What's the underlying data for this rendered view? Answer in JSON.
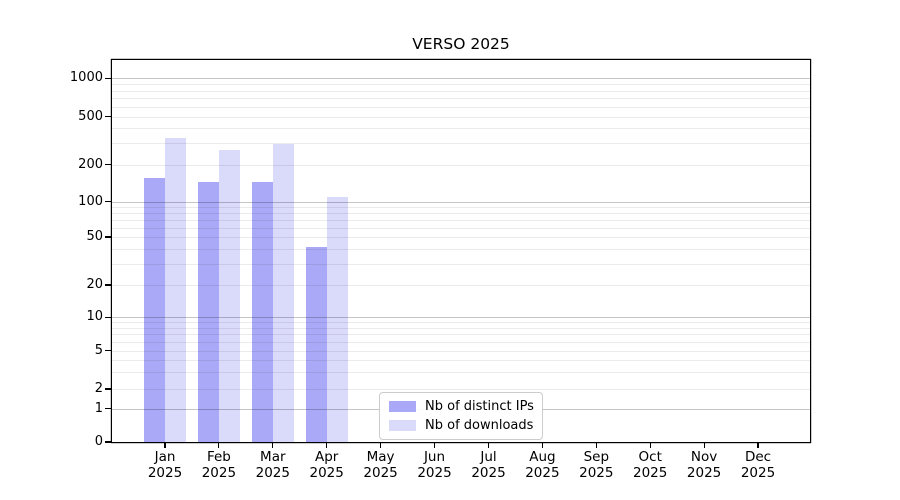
{
  "title": "VERSO 2025",
  "chart_data": {
    "type": "bar",
    "title": "VERSO 2025",
    "yscale": "symlog",
    "grid": true,
    "legend_position": "lower center",
    "months": [
      "Jan",
      "Feb",
      "Mar",
      "Apr",
      "May",
      "Jun",
      "Jul",
      "Aug",
      "Sep",
      "Oct",
      "Nov",
      "Dec"
    ],
    "year": "2025",
    "yticks": [
      0,
      1,
      2,
      5,
      10,
      20,
      50,
      100,
      200,
      500,
      1000
    ],
    "ylim": [
      0,
      1400
    ],
    "axis_color": "#000000",
    "grid_minor_color": "#ebebeb",
    "grid_major_color": "#c5c5c5",
    "series": [
      {
        "name": "Nb of distinct IPs",
        "color": "#a9a9f7",
        "values": [
          155,
          145,
          145,
          41,
          0,
          0,
          0,
          0,
          0,
          0,
          0,
          0
        ]
      },
      {
        "name": "Nb of downloads",
        "color": "#dadafb",
        "values": [
          335,
          265,
          295,
          108,
          0,
          0,
          0,
          0,
          0,
          0,
          0,
          0
        ]
      }
    ]
  }
}
